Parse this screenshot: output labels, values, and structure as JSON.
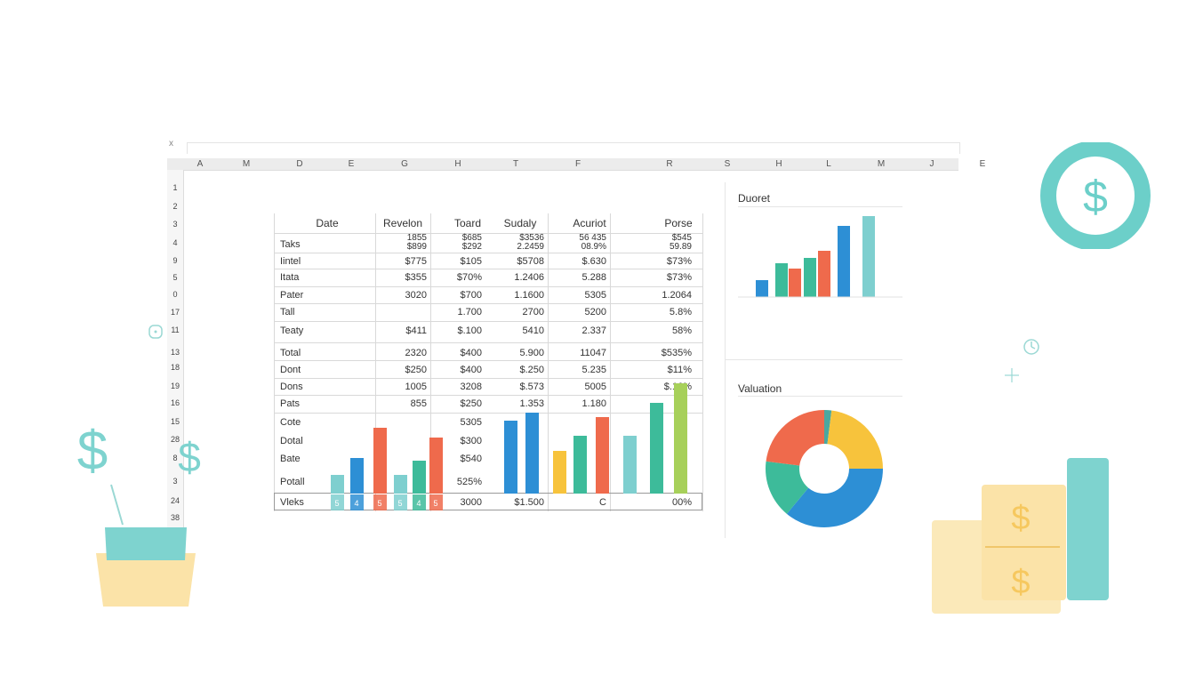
{
  "spreadsheet": {
    "corner": "x",
    "columns": [
      "A",
      "M",
      "D",
      "E",
      "G",
      "H",
      "T",
      "F",
      "R",
      "S",
      "H",
      "L",
      "M",
      "J",
      "E"
    ],
    "rows": [
      "1",
      "2",
      "3",
      "4",
      "9",
      "5",
      "0",
      "17",
      "11",
      "13",
      "18",
      "19",
      "16",
      "15",
      "28",
      "8",
      "3",
      "24",
      "38"
    ]
  },
  "table": {
    "headers": [
      "Date",
      "Revelon",
      "Toard",
      "Sudaly",
      "Acuriot",
      "Porse"
    ],
    "rows": [
      {
        "label": "Taks",
        "cells": [
          "1855\n$899",
          "$685\n$292",
          "$3536\n2.2459",
          "56 435\n08.9%",
          "$545\n59.89"
        ]
      },
      {
        "label": "Iintel",
        "cells": [
          "$775",
          "$105",
          "$5708",
          "$.630",
          "$73%"
        ]
      },
      {
        "label": "Itata",
        "cells": [
          "$355",
          "$70%",
          "1.2406",
          "5.288",
          "$73%"
        ]
      },
      {
        "label": "Pater",
        "cells": [
          "3020",
          "$700",
          "1.1600",
          "5305",
          "1.2064"
        ]
      },
      {
        "label": "Tall",
        "cells": [
          "",
          "1.700",
          "2700",
          "5200",
          "5.8%"
        ]
      },
      {
        "label": "Teaty",
        "cells": [
          "$411",
          "$.100",
          "5410",
          "2.337",
          "58%"
        ]
      },
      {
        "label": "Total",
        "cells": [
          "2320",
          "$400",
          "5.900",
          "11047",
          "$535%"
        ]
      },
      {
        "label": "Dont",
        "cells": [
          "$250",
          "$400",
          "$.250",
          "5.235",
          "$11%"
        ]
      },
      {
        "label": "Dons",
        "cells": [
          "1005",
          "3208",
          "$.573",
          "5005",
          "$.16%"
        ]
      },
      {
        "label": "Pats",
        "cells": [
          "855",
          "$250",
          "1.353",
          "1.180",
          ""
        ]
      },
      {
        "label": "Cote",
        "cells": [
          "",
          "5305",
          "",
          "",
          ""
        ]
      },
      {
        "label": "Dotal",
        "cells": [
          "",
          "$300",
          "",
          "",
          ""
        ]
      },
      {
        "label": "Bate",
        "cells": [
          "",
          "$540",
          "",
          "",
          ""
        ]
      },
      {
        "label": "Potall",
        "cells": [
          "",
          "525%",
          "",
          "",
          ""
        ]
      }
    ],
    "footer": {
      "label": "Vleks",
      "cells": [
        "3000",
        "$1.500",
        "C",
        "00%"
      ]
    },
    "bar_labels": [
      "5",
      "4",
      "5",
      "5",
      "4",
      "5"
    ]
  },
  "panels": {
    "top_title": "Duoret",
    "bottom_title": "Valuation"
  },
  "colors": {
    "teal": "#7ecfcf",
    "blue": "#2d8fd5",
    "green": "#3dbb9a",
    "red": "#ef6a4c",
    "yellow": "#f7c33c",
    "lime": "#a7d05a",
    "coin_ring": "#6ccfc9",
    "cream": "#fbe9b9"
  },
  "icons": [
    "dollar-icon",
    "plus-icon",
    "clock-icon",
    "dice-icon"
  ],
  "decor": {
    "dollar": "$"
  }
}
